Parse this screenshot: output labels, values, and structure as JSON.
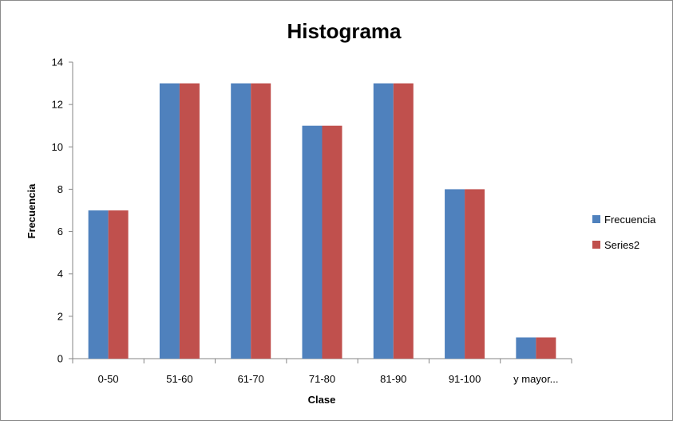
{
  "chart_data": {
    "type": "bar",
    "title": "Histograma",
    "xlabel": "Clase",
    "ylabel": "Frecuencia",
    "categories": [
      "0-50",
      "51-60",
      "61-70",
      "71-80",
      "81-90",
      "91-100",
      "y mayor..."
    ],
    "series": [
      {
        "name": "Frecuencia",
        "values": [
          7,
          13,
          13,
          11,
          13,
          8,
          1
        ],
        "color": "#4f81bd"
      },
      {
        "name": "Series2",
        "values": [
          7,
          13,
          13,
          11,
          13,
          8,
          1
        ],
        "color": "#c0504d"
      }
    ],
    "ylim": [
      0,
      14
    ],
    "yticks": [
      0,
      2,
      4,
      6,
      8,
      10,
      12,
      14
    ],
    "grid": false,
    "legend_position": "right"
  }
}
